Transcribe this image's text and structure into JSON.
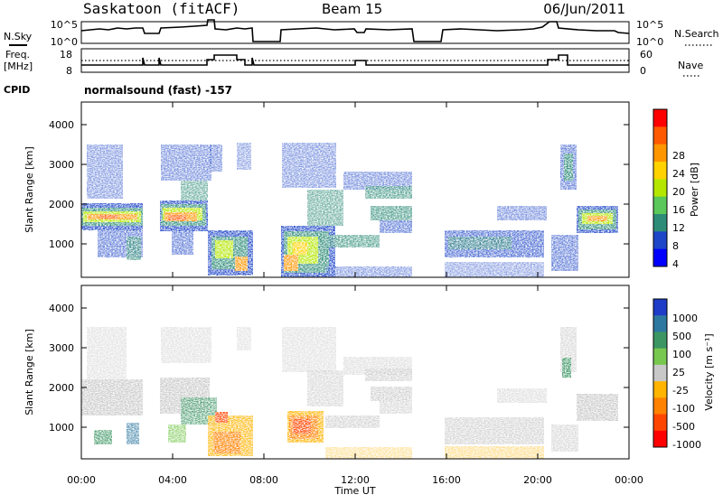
{
  "header": {
    "station": "Saskatoon (fitACF)",
    "beam": "Beam 15",
    "date": "06/Jun/2011"
  },
  "nsky_panel": {
    "left_label": "N.Sky",
    "left_ticks": [
      "10^5",
      "10^0"
    ],
    "right_ticks": [
      "10^5",
      "10^0"
    ],
    "right_label": "N.Search"
  },
  "freq_panel": {
    "left_label_line1": "Freq.",
    "left_label_line2": "[MHz]",
    "left_ticks": [
      "18",
      "8"
    ],
    "right_ticks": [
      "60",
      "0"
    ],
    "right_label": "Nave",
    "cpid_label": "CPID",
    "cpid_value": "normalsound (fast) -157"
  },
  "time_axis": {
    "label": "Time UT",
    "ticks": [
      "00:00",
      "04:00",
      "08:00",
      "12:00",
      "16:00",
      "20:00",
      "00:00"
    ]
  },
  "range_axis": {
    "label": "Slant Range [km]",
    "ticks": [
      "4000",
      "3000",
      "2000",
      "1000"
    ]
  },
  "power_colorbar": {
    "label": "Power [dB]",
    "ticks": [
      "28",
      "24",
      "20",
      "16",
      "12",
      "8",
      "4"
    ],
    "colors": [
      "#ff0000",
      "#ff5a00",
      "#ff9600",
      "#ffd200",
      "#b4e600",
      "#5ac85a",
      "#2d8c78",
      "#1e46c8",
      "#0000ff"
    ]
  },
  "velocity_colorbar": {
    "label": "Velocity [m s⁻¹]",
    "ticks": [
      "1000",
      "500",
      "100",
      "25",
      "-25",
      "-100",
      "-500",
      "-1000"
    ],
    "colors": [
      "#1e3cc8",
      "#2d78a0",
      "#3c9664",
      "#78c850",
      "#c8c8c8",
      "#ffb400",
      "#ff8200",
      "#ff4600",
      "#ff0000"
    ]
  },
  "chart_data": {
    "type": "heatmap",
    "x_range": [
      "00:00",
      "24:00"
    ],
    "y_range_km": [
      180,
      4600
    ],
    "grid": false
  }
}
